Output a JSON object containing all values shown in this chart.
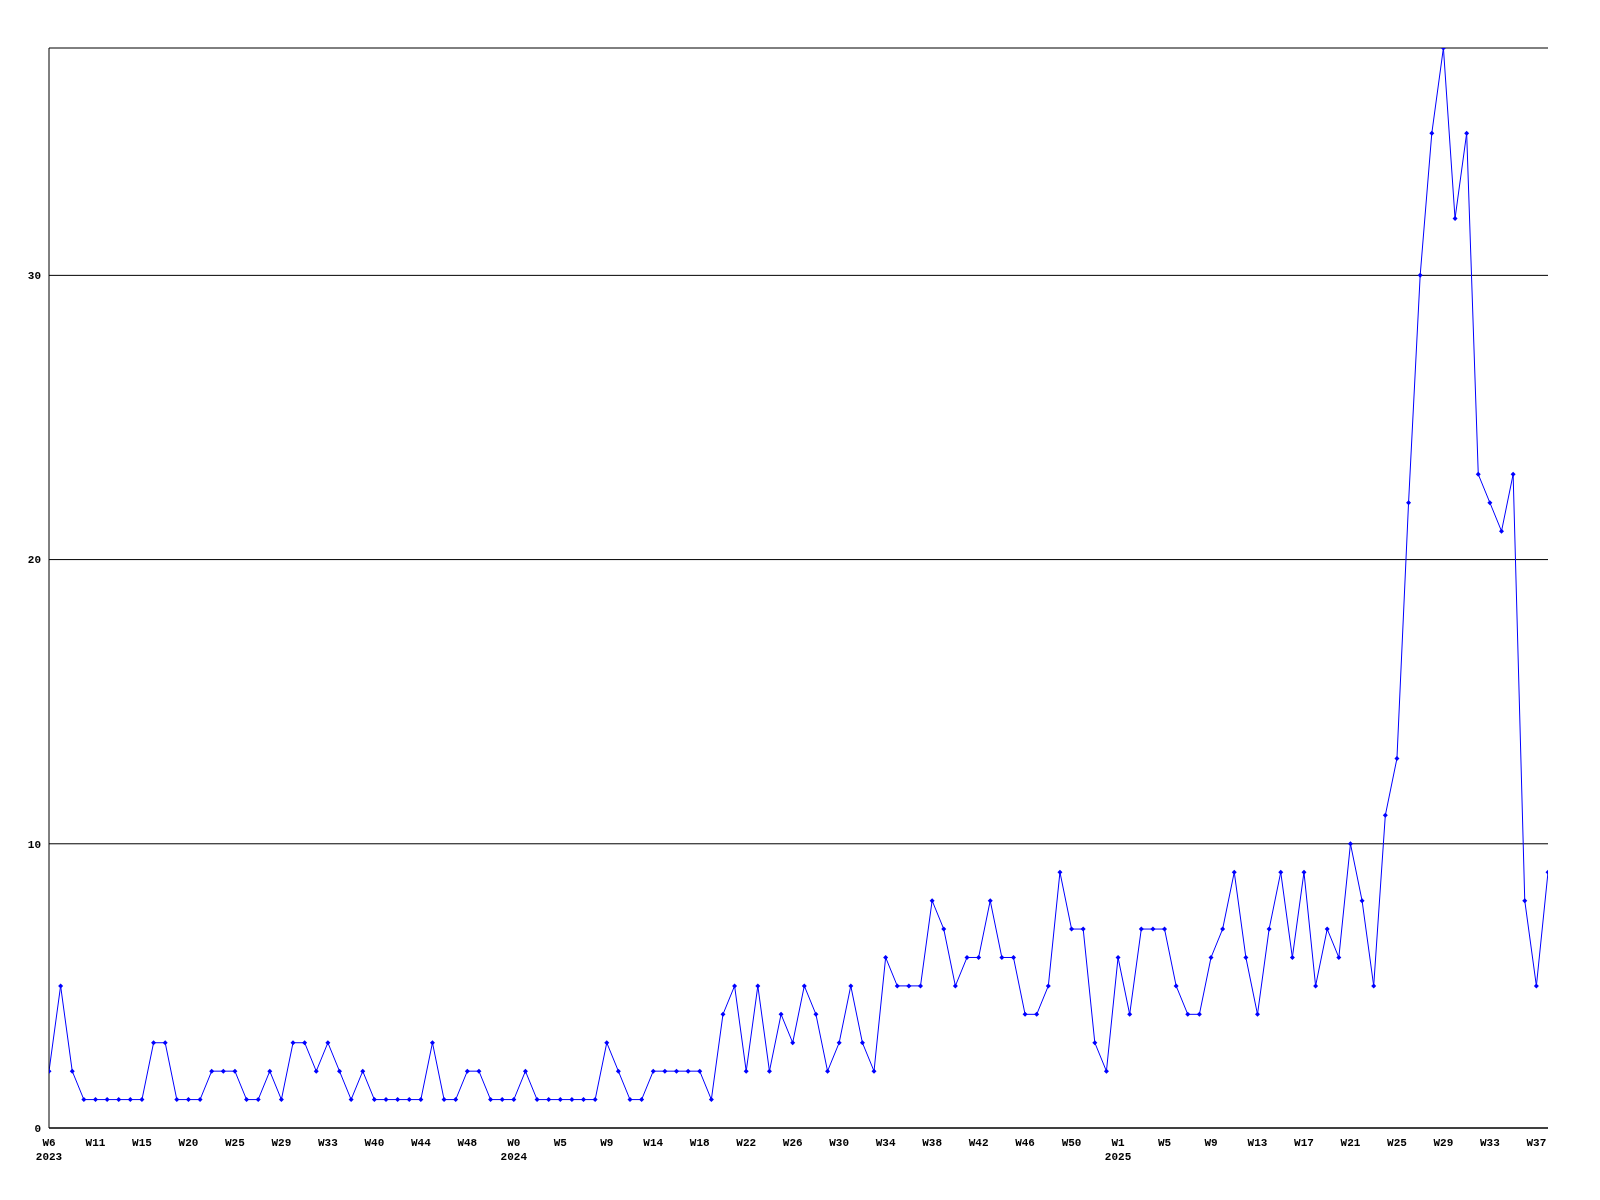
{
  "chart_data": {
    "type": "line",
    "categories": [
      "W6\n2023",
      null,
      null,
      null,
      "W11",
      null,
      null,
      null,
      "W15",
      null,
      null,
      null,
      "W20",
      null,
      null,
      null,
      "W25",
      null,
      null,
      null,
      "W29",
      null,
      null,
      null,
      "W33",
      null,
      null,
      null,
      "W40",
      null,
      null,
      null,
      "W44",
      null,
      null,
      null,
      "W48",
      null,
      null,
      null,
      "W0\n2024",
      null,
      null,
      null,
      "W5",
      null,
      null,
      null,
      "W9",
      null,
      null,
      null,
      "W14",
      null,
      null,
      null,
      "W18",
      null,
      null,
      null,
      "W22",
      null,
      null,
      null,
      "W26",
      null,
      null,
      null,
      "W30",
      null,
      null,
      null,
      "W34",
      null,
      null,
      null,
      "W38",
      null,
      null,
      null,
      "W42",
      null,
      null,
      null,
      "W46",
      null,
      null,
      null,
      "W50",
      null,
      null,
      null,
      "W1\n2025",
      null,
      null,
      null,
      "W5",
      null,
      null,
      null,
      "W9",
      null,
      null,
      null,
      "W13",
      null,
      null,
      null,
      "W17",
      null,
      null,
      null,
      "W21",
      null,
      null,
      null,
      "W25",
      null,
      null,
      null,
      "W29",
      null,
      null,
      null,
      "W33",
      null,
      null,
      null,
      "W37",
      null
    ],
    "series": [
      {
        "color": "#0000ff",
        "values": [
          2,
          5,
          2,
          1,
          1,
          1,
          1,
          1,
          1,
          3,
          3,
          1,
          1,
          1,
          2,
          2,
          2,
          1,
          1,
          2,
          1,
          3,
          3,
          2,
          3,
          2,
          1,
          2,
          1,
          1,
          1,
          1,
          1,
          3,
          1,
          1,
          2,
          2,
          1,
          1,
          1,
          2,
          1,
          1,
          1,
          1,
          1,
          1,
          3,
          2,
          1,
          1,
          2,
          2,
          2,
          2,
          2,
          1,
          4,
          5,
          2,
          5,
          2,
          4,
          3,
          5,
          4,
          2,
          3,
          5,
          3,
          2,
          6,
          5,
          5,
          5,
          8,
          7,
          5,
          6,
          6,
          8,
          6,
          6,
          4,
          4,
          5,
          9,
          7,
          7,
          3,
          2,
          6,
          4,
          7,
          7,
          7,
          5,
          4,
          4,
          6,
          7,
          9,
          6,
          4,
          7,
          9,
          6,
          9,
          5,
          7,
          6,
          10,
          8,
          5,
          11,
          13,
          22,
          30,
          35,
          38,
          32,
          35,
          23,
          22,
          21,
          23,
          8,
          5,
          9
        ]
      }
    ],
    "ylim": [
      0,
      38
    ],
    "yticks": [
      0,
      10,
      20,
      30
    ],
    "grid": "y",
    "marker": "diamond",
    "line_style": "solid"
  }
}
